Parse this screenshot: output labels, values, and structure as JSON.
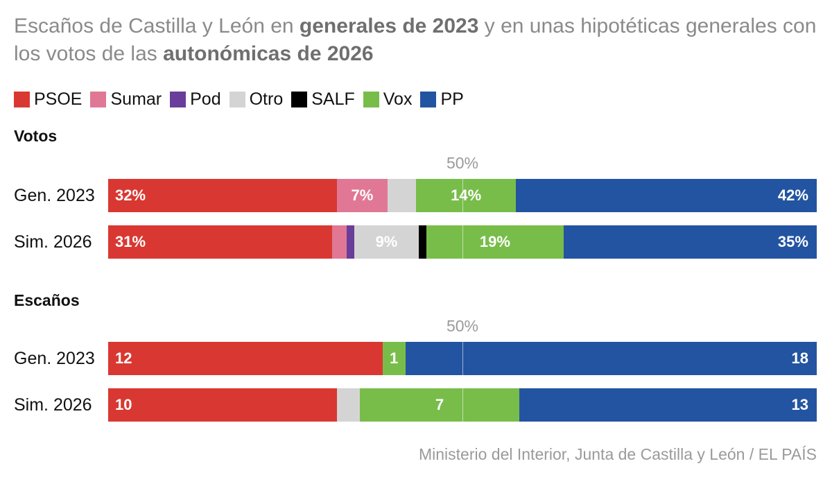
{
  "title": {
    "part1": "Escaños de Castilla y León en ",
    "bold1": "generales de 2023",
    "part2": " y en unas hipotéticas generales con los votos de las ",
    "bold2": "autonómicas de 2026"
  },
  "legend": [
    {
      "label": "PSOE",
      "color": "#d93832"
    },
    {
      "label": "Sumar",
      "color": "#e07895"
    },
    {
      "label": "Pod",
      "color": "#6a3d9a"
    },
    {
      "label": "Otro",
      "color": "#d4d4d4"
    },
    {
      "label": "SALF",
      "color": "#000000"
    },
    {
      "label": "Vox",
      "color": "#78bd4a"
    },
    {
      "label": "PP",
      "color": "#2354a1"
    }
  ],
  "source": "Ministerio del Interior, Junta de Castilla y León / EL PAÍS",
  "chart_data": [
    {
      "type": "bar",
      "stacked": true,
      "orientation": "horizontal",
      "title": "Votos",
      "reference_line": {
        "value": 50,
        "label": "50%"
      },
      "categories": [
        "Gen. 2023",
        "Sim. 2026"
      ],
      "series": [
        {
          "name": "PSOE",
          "values": [
            32,
            31
          ],
          "labels": [
            "32%",
            "31%"
          ]
        },
        {
          "name": "Sumar",
          "values": [
            7,
            2
          ],
          "labels": [
            "7%",
            ""
          ]
        },
        {
          "name": "Pod",
          "values": [
            0,
            1
          ],
          "labels": [
            "",
            ""
          ]
        },
        {
          "name": "Otro",
          "values": [
            4,
            9
          ],
          "labels": [
            "",
            "9%"
          ]
        },
        {
          "name": "SALF",
          "values": [
            0,
            1
          ],
          "labels": [
            "",
            ""
          ]
        },
        {
          "name": "Vox",
          "values": [
            14,
            19
          ],
          "labels": [
            "14%",
            "19%"
          ]
        },
        {
          "name": "PP",
          "values": [
            42,
            35
          ],
          "labels": [
            "42%",
            "35%"
          ]
        }
      ]
    },
    {
      "type": "bar",
      "stacked": true,
      "orientation": "horizontal",
      "title": "Escaños",
      "reference_line": {
        "value": 50,
        "label": "50%"
      },
      "categories": [
        "Gen. 2023",
        "Sim. 2026"
      ],
      "series": [
        {
          "name": "PSOE",
          "values": [
            12,
            10
          ],
          "labels": [
            "12",
            "10"
          ]
        },
        {
          "name": "Otro",
          "values": [
            0,
            1
          ],
          "labels": [
            "",
            ""
          ]
        },
        {
          "name": "Vox",
          "values": [
            1,
            7
          ],
          "labels": [
            "1",
            "7"
          ]
        },
        {
          "name": "PP",
          "values": [
            18,
            13
          ],
          "labels": [
            "18",
            "13"
          ]
        }
      ]
    }
  ]
}
